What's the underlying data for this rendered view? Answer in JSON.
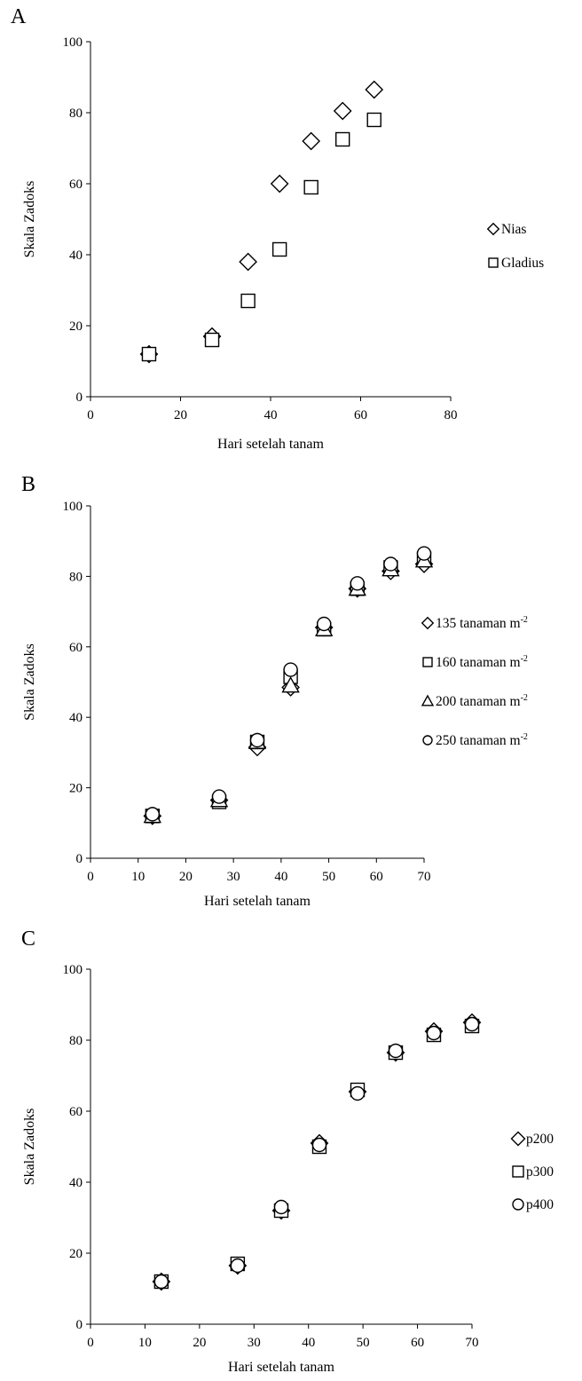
{
  "chart_data": [
    {
      "type": "scatter",
      "panel_label": "A",
      "xlabel": "Hari setelah tanam",
      "ylabel": "Skala Zadoks",
      "xlim": [
        0,
        80
      ],
      "ylim": [
        0,
        100
      ],
      "x_ticks": [
        0,
        20,
        40,
        60,
        80
      ],
      "y_ticks": [
        0,
        20,
        40,
        60,
        80,
        100
      ],
      "grid": false,
      "legend_position": "right",
      "series": [
        {
          "name": "Nias",
          "marker": "diamond",
          "points": [
            [
              13,
              12
            ],
            [
              27,
              17
            ],
            [
              35,
              38
            ],
            [
              42,
              60
            ],
            [
              49,
              72
            ],
            [
              56,
              80.5
            ],
            [
              63,
              86.5
            ]
          ]
        },
        {
          "name": "Gladius",
          "marker": "square",
          "points": [
            [
              13,
              12
            ],
            [
              27,
              16
            ],
            [
              35,
              27
            ],
            [
              42,
              41.5
            ],
            [
              49,
              59
            ],
            [
              56,
              72.5
            ],
            [
              63,
              78
            ]
          ]
        }
      ]
    },
    {
      "type": "scatter",
      "panel_label": "B",
      "xlabel": "Hari setelah tanam",
      "ylabel": "Skala Zadoks",
      "xlim": [
        0,
        70
      ],
      "ylim": [
        0,
        100
      ],
      "x_ticks": [
        0,
        10,
        20,
        30,
        40,
        50,
        60,
        70
      ],
      "y_ticks": [
        0,
        20,
        40,
        60,
        80,
        100
      ],
      "grid": false,
      "legend_position": "right",
      "series": [
        {
          "name": "135 tanaman m",
          "name_superscript": "-2",
          "marker": "diamond",
          "points": [
            [
              13,
              12
            ],
            [
              27,
              16.5
            ],
            [
              35,
              31.5
            ],
            [
              42,
              48.5
            ],
            [
              49,
              65.5
            ],
            [
              56,
              76.5
            ],
            [
              63,
              81.5
            ],
            [
              70,
              83.5
            ]
          ]
        },
        {
          "name": "160 tanaman m",
          "name_superscript": "-2",
          "marker": "square",
          "points": [
            [
              13,
              12
            ],
            [
              27,
              16
            ],
            [
              35,
              33
            ],
            [
              42,
              51.5
            ],
            [
              49,
              65
            ],
            [
              56,
              76.5
            ],
            [
              63,
              82.5
            ],
            [
              70,
              85
            ]
          ]
        },
        {
          "name": "200 tanaman m",
          "name_superscript": "-2",
          "marker": "triangle",
          "points": [
            [
              13,
              12
            ],
            [
              27,
              16.5
            ],
            [
              35,
              33
            ],
            [
              42,
              49
            ],
            [
              49,
              65
            ],
            [
              56,
              76.5
            ],
            [
              63,
              82
            ],
            [
              70,
              84.5
            ]
          ]
        },
        {
          "name": "250 tanaman m",
          "name_superscript": "-2",
          "marker": "circle",
          "points": [
            [
              13,
              12.5
            ],
            [
              27,
              17.5
            ],
            [
              35,
              33.5
            ],
            [
              42,
              53.5
            ],
            [
              49,
              66.5
            ],
            [
              56,
              78
            ],
            [
              63,
              83.5
            ],
            [
              70,
              86.5
            ]
          ]
        }
      ]
    },
    {
      "type": "scatter",
      "panel_label": "C",
      "xlabel": "Hari setelah tanam",
      "ylabel": "Skala Zadoks",
      "xlim": [
        0,
        70
      ],
      "ylim": [
        0,
        100
      ],
      "x_ticks": [
        0,
        10,
        20,
        30,
        40,
        50,
        60,
        70
      ],
      "y_ticks": [
        0,
        20,
        40,
        60,
        80,
        100
      ],
      "grid": false,
      "legend_position": "right",
      "series": [
        {
          "name": "p200",
          "marker": "diamond",
          "points": [
            [
              13,
              12
            ],
            [
              27,
              16.5
            ],
            [
              35,
              32
            ],
            [
              42,
              51
            ],
            [
              49,
              65.5
            ],
            [
              56,
              76.5
            ],
            [
              63,
              82.5
            ],
            [
              70,
              85
            ]
          ]
        },
        {
          "name": "p300",
          "marker": "square",
          "points": [
            [
              13,
              12
            ],
            [
              27,
              17
            ],
            [
              35,
              32
            ],
            [
              42,
              50
            ],
            [
              49,
              66
            ],
            [
              56,
              76.5
            ],
            [
              63,
              81.5
            ],
            [
              70,
              84
            ]
          ]
        },
        {
          "name": "p400",
          "marker": "circle",
          "points": [
            [
              13,
              12
            ],
            [
              27,
              16.5
            ],
            [
              35,
              33
            ],
            [
              42,
              50.5
            ],
            [
              49,
              65
            ],
            [
              56,
              77
            ],
            [
              63,
              82
            ],
            [
              70,
              84.5
            ]
          ]
        }
      ]
    }
  ]
}
